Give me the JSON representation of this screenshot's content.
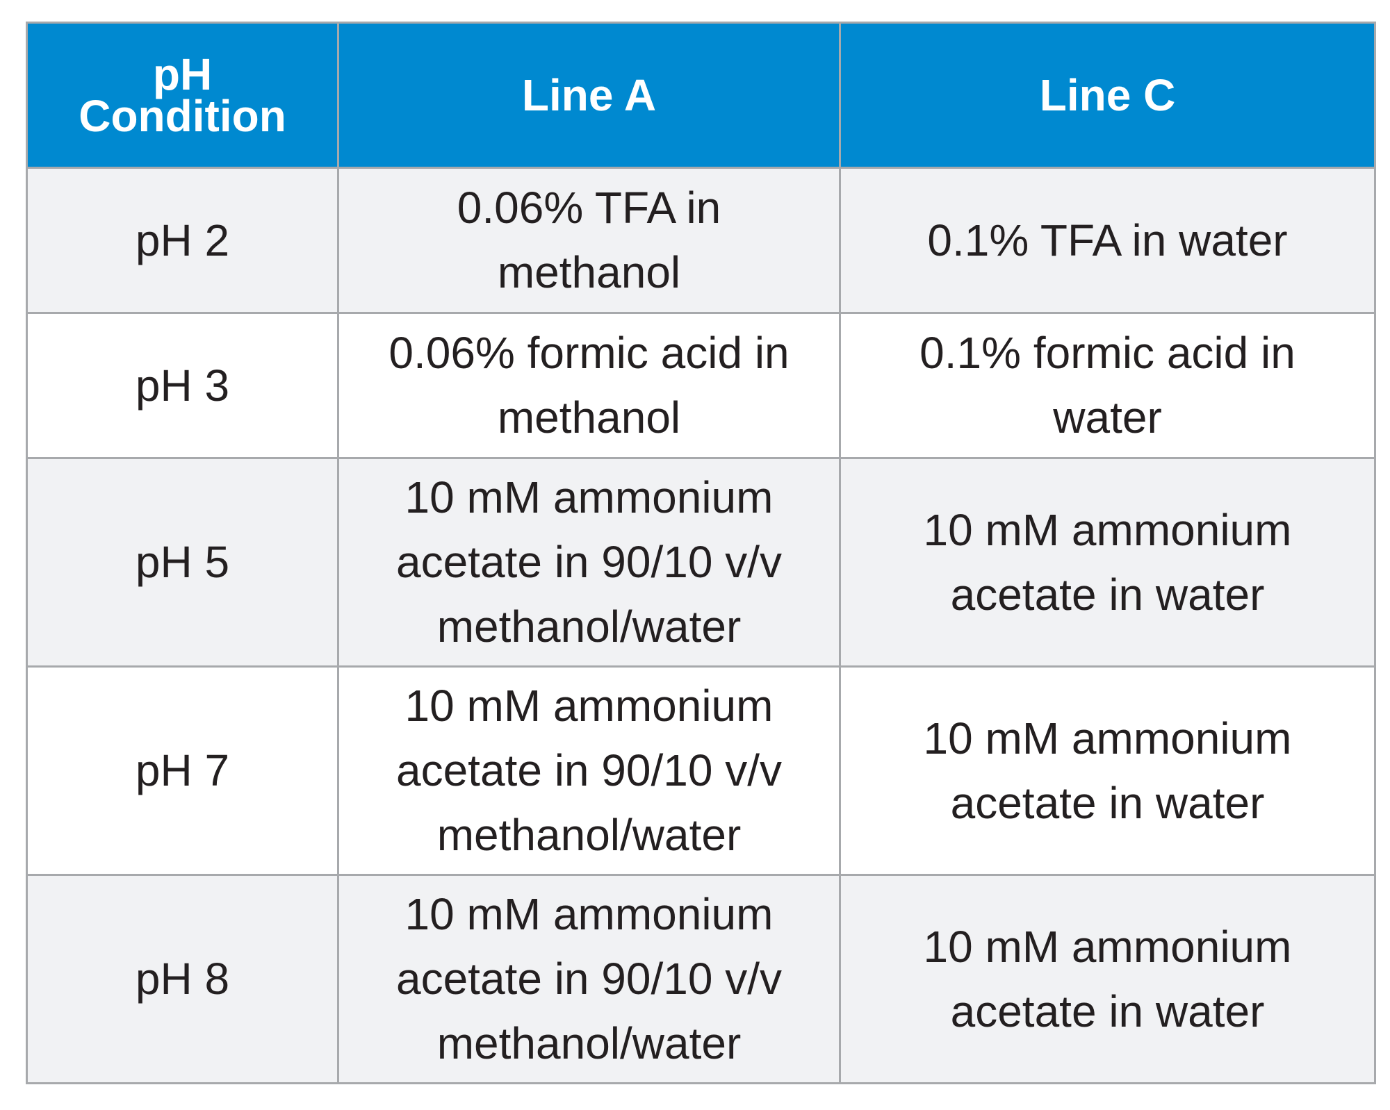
{
  "table": {
    "headers": [
      "pH Condition",
      "Line A",
      "Line C"
    ],
    "rows": [
      {
        "condition": "pH 2",
        "line_a": "0.06% TFA in methanol",
        "line_c": "0.1% TFA in water"
      },
      {
        "condition": "pH 3",
        "line_a": "0.06% formic acid in methanol",
        "line_c": "0.1% formic acid in water"
      },
      {
        "condition": "pH 5",
        "line_a": "10 mM ammonium acetate in 90/10 v/v methanol/water",
        "line_c": "10 mM ammonium acetate in water"
      },
      {
        "condition": "pH 7",
        "line_a": "10 mM ammonium acetate in 90/10 v/v methanol/water",
        "line_c": "10 mM ammonium acetate in water"
      },
      {
        "condition": "pH 8",
        "line_a": "10 mM ammonium acetate in 90/10 v/v methanol/water",
        "line_c": "10 mM ammonium acetate in water"
      }
    ]
  },
  "colors": {
    "header_bg": "#0089d0",
    "row_shaded_bg": "#f1f2f4",
    "border": "#a7a9ac"
  }
}
